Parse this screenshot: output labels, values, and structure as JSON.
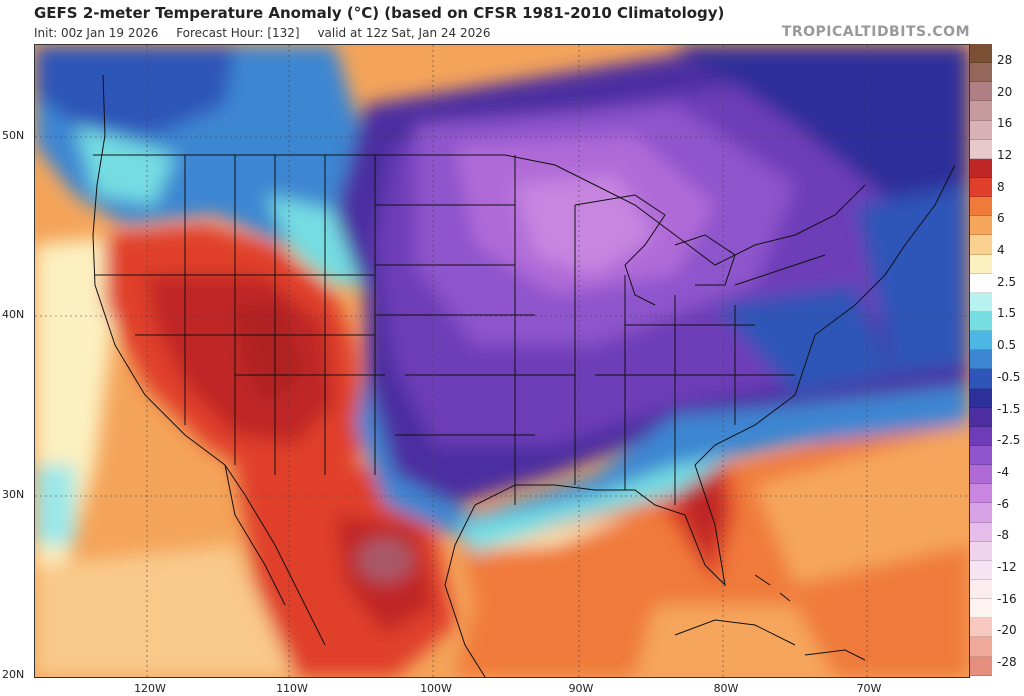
{
  "header": {
    "title": "GEFS 2-meter Temperature Anomaly (°C) (based on CFSR 1981-2010 Climatology)",
    "init": "Init: 00z Jan 19 2026",
    "forecast_hour": "Forecast Hour: [132]",
    "valid": "valid at 12z Sat, Jan 24 2026",
    "credit": "TROPICALTIDBITS.COM"
  },
  "axes": {
    "lat_labels": [
      "50N",
      "40N",
      "30N",
      "20N"
    ],
    "lon_labels": [
      "120W",
      "110W",
      "100W",
      "90W",
      "80W",
      "70W"
    ]
  },
  "colorbar": {
    "labels": [
      "28",
      "20",
      "16",
      "12",
      "8",
      "6",
      "4",
      "2.5",
      "1.5",
      "0.5",
      "-0.5",
      "-1.5",
      "-2.5",
      "-4",
      "-6",
      "-8",
      "-12",
      "-16",
      "-20",
      "-28"
    ],
    "colors": [
      "#7a4f33",
      "#94675a",
      "#b07f85",
      "#c79aa0",
      "#d9b2b8",
      "#e8c9cc",
      "#c02828",
      "#e0402b",
      "#f07a3a",
      "#f5a65c",
      "#fad18e",
      "#fdf0c0",
      "#ffffff",
      "#b8f2f0",
      "#76dde2",
      "#4cb6e4",
      "#3d86d2",
      "#2f55b8",
      "#2d2f9a",
      "#4c2ea0",
      "#6e3cb8",
      "#8e55cc",
      "#b06ad8",
      "#c886e0",
      "#d8a2e6",
      "#e6bdea",
      "#f0d4ee",
      "#f6e4f2",
      "#fbecef",
      "#fdf3f1",
      "#f7c9c0",
      "#f0aa9c",
      "#e68e7d"
    ]
  }
}
